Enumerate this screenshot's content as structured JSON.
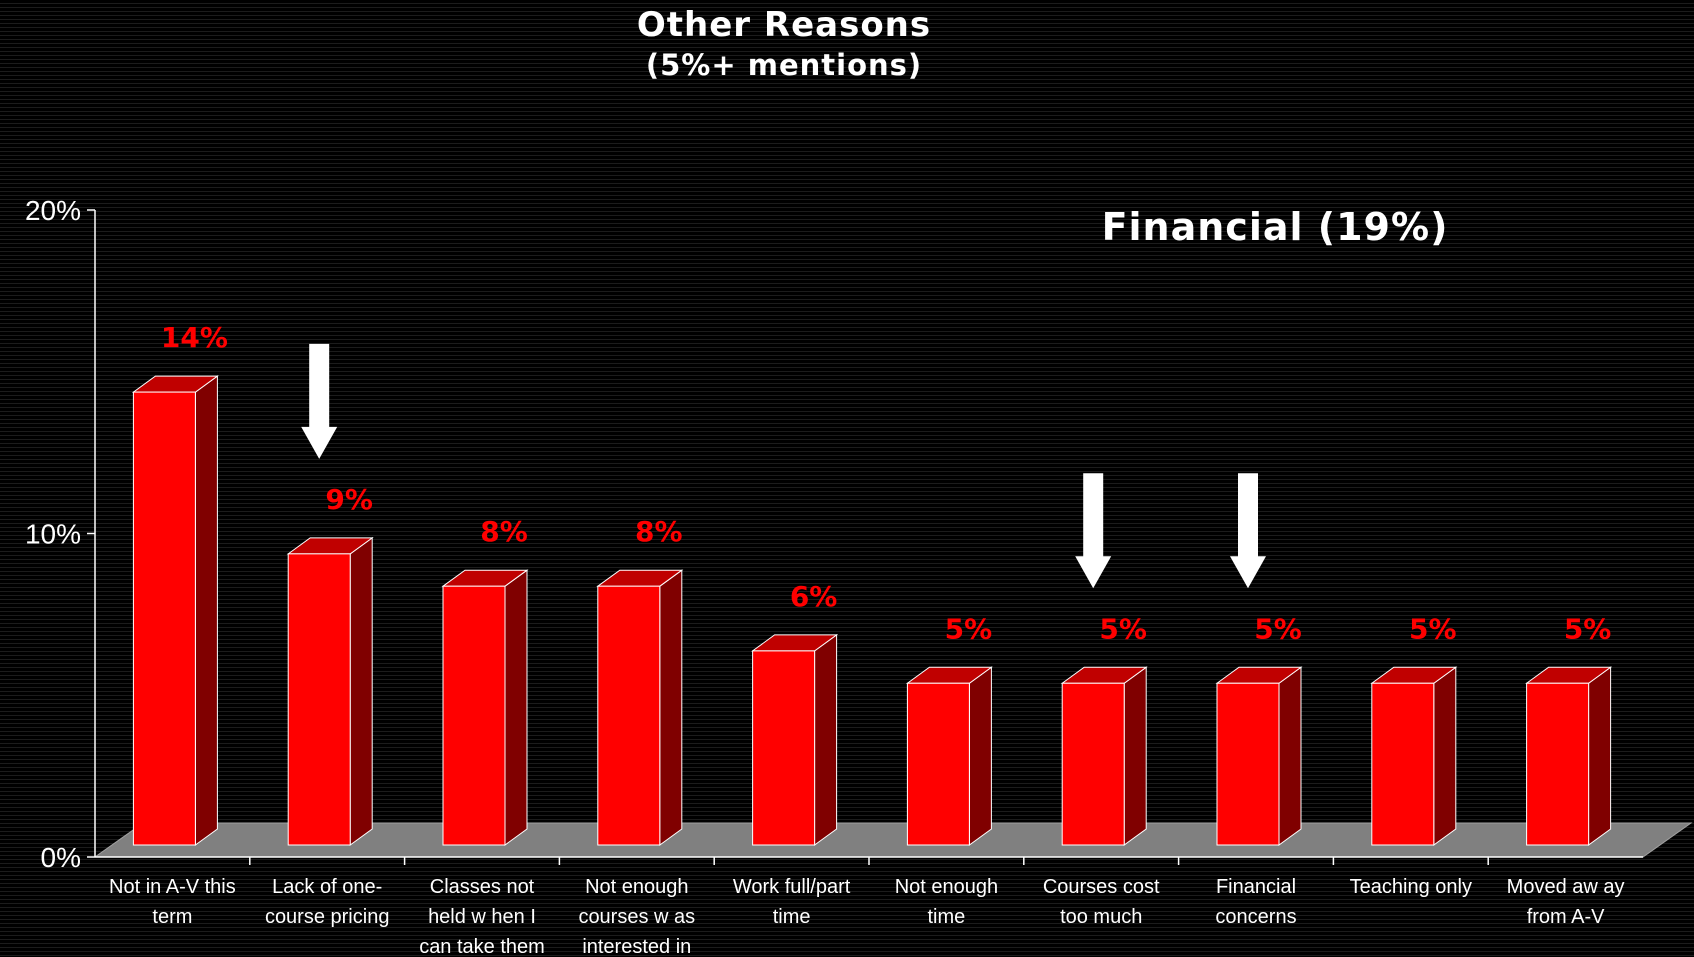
{
  "chart_data": {
    "type": "bar",
    "title": "Other Reasons",
    "subtitle": "(5%+ mentions)",
    "categories": [
      [
        "Not in A-V this",
        "term"
      ],
      [
        "Lack of one-",
        "course pricing"
      ],
      [
        "Classes not",
        "held w hen I",
        "can take them"
      ],
      [
        "Not enough",
        "courses w as",
        "interested in"
      ],
      [
        "Work full/part",
        "time"
      ],
      [
        "Not enough",
        "time"
      ],
      [
        "Courses cost",
        "too much"
      ],
      [
        "Financial",
        "concerns"
      ],
      [
        "Teaching only"
      ],
      [
        "Moved aw ay",
        "from A-V"
      ]
    ],
    "values": [
      14,
      9,
      8,
      8,
      6,
      5,
      5,
      5,
      5,
      5
    ],
    "value_labels": [
      "14%",
      "9%",
      "8%",
      "8%",
      "6%",
      "5%",
      "5%",
      "5%",
      "5%",
      "5%"
    ],
    "y_ticks": [
      {
        "value": 0,
        "label": "0%"
      },
      {
        "value": 10,
        "label": "10%"
      },
      {
        "value": 20,
        "label": "20%"
      }
    ],
    "ylim": [
      0,
      20
    ],
    "grid": false,
    "legend": "none",
    "annotation": "Financial (19%)",
    "highlighted_categories": [
      1,
      6,
      7
    ],
    "colors": {
      "background": "#000000",
      "bar_front": "#ff0000",
      "bar_side": "#800000",
      "bar_top": "#c00000",
      "floor": "#808080",
      "value_label": "#ff0000",
      "text": "#ffffff",
      "arrow": "#ffffff"
    }
  }
}
